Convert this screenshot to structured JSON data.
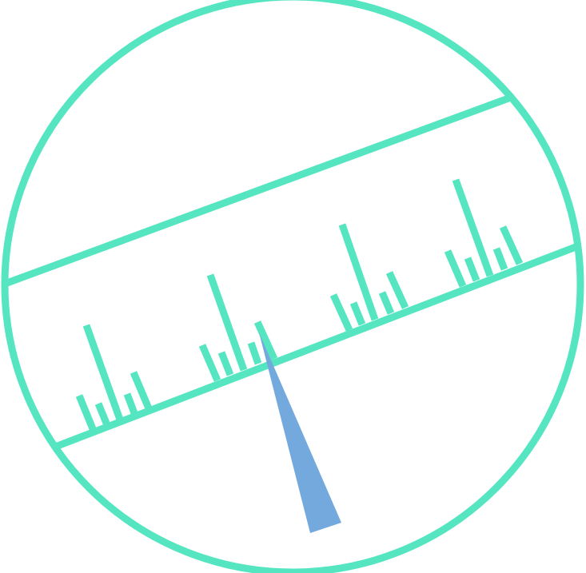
{
  "illustration": {
    "subject": "ruler-tape-measure-icon",
    "colors": {
      "outline": "#55E6C1",
      "pointer": "#74A9DE",
      "background": "#FFFFFF"
    },
    "tick_groups": 4,
    "ticks_per_group": 5
  }
}
